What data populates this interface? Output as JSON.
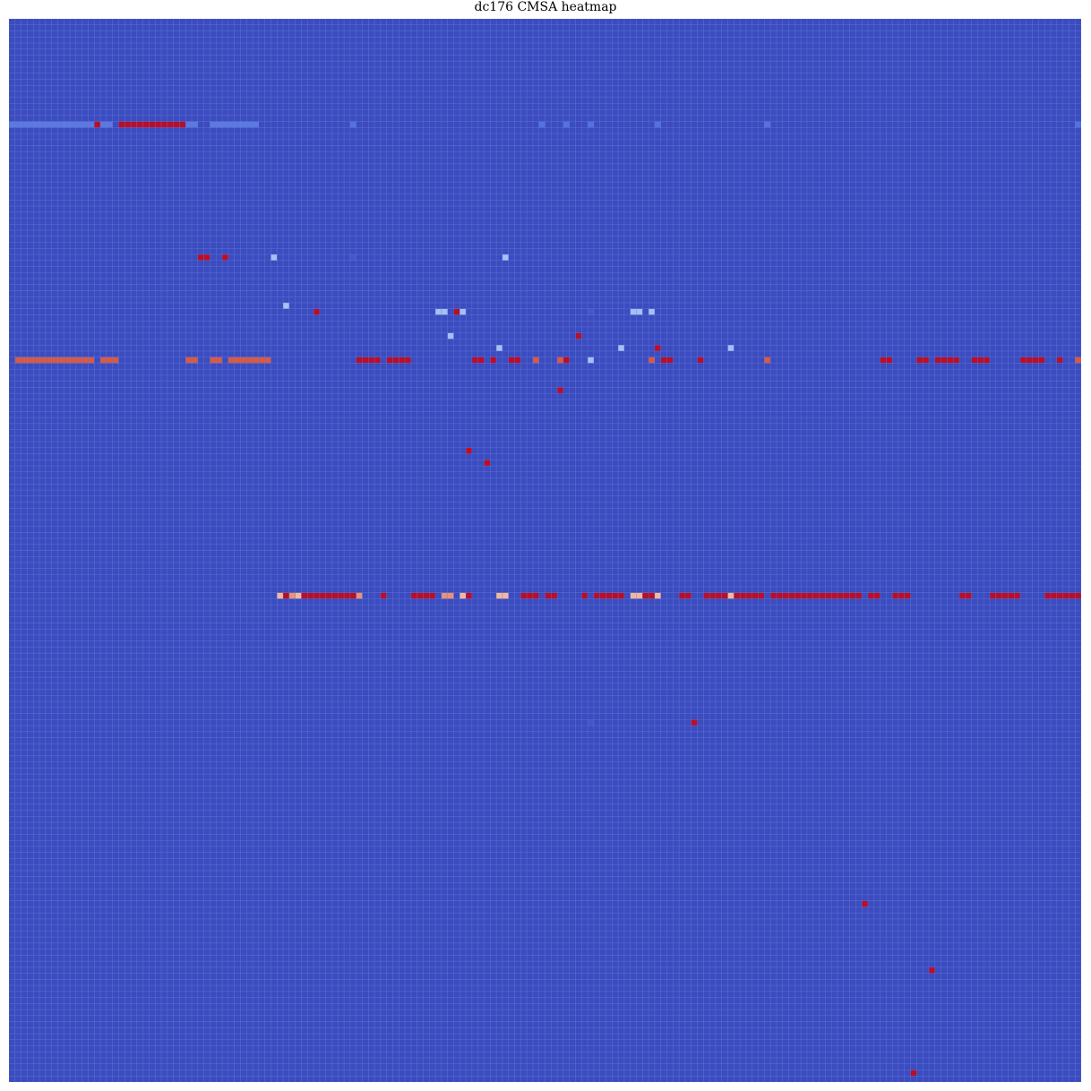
{
  "chart_data": {
    "type": "heatmap",
    "title": "dc176 CMSA heatmap",
    "xlabel": "",
    "ylabel": "",
    "grid": true,
    "legend": "none",
    "colormap": "coolwarm",
    "n_rows": 176,
    "n_cols": 176,
    "background_value": 0.0,
    "value_range": [
      0,
      1
    ],
    "colors": {
      "background": "#3b4cc0",
      "grid": "#6f7fd8"
    },
    "cells": [
      {
        "row": 17,
        "cols": [
          [
            0,
            13
          ],
          [
            15,
            16
          ],
          [
            29,
            30
          ],
          [
            33,
            40
          ]
        ],
        "value": 0.18
      },
      {
        "row": 17,
        "cols": [
          [
            56,
            56
          ],
          [
            87,
            87
          ],
          [
            91,
            91
          ],
          [
            95,
            95
          ],
          [
            106,
            106
          ],
          [
            124,
            124
          ],
          [
            175,
            175
          ]
        ],
        "value": 0.16
      },
      {
        "row": 17,
        "cols": [
          [
            14,
            14
          ],
          [
            18,
            28
          ]
        ],
        "value": 0.98
      },
      {
        "row": 39,
        "cols": [
          [
            31,
            32
          ],
          [
            35,
            35
          ]
        ],
        "value": 0.98
      },
      {
        "row": 39,
        "cols": [
          [
            43,
            43
          ],
          [
            81,
            81
          ]
        ],
        "value": 0.38
      },
      {
        "row": 39,
        "cols": [
          [
            56,
            56
          ]
        ],
        "value": 0.05
      },
      {
        "row": 47,
        "cols": [
          [
            45,
            45
          ]
        ],
        "value": 0.38
      },
      {
        "row": 48,
        "cols": [
          [
            50,
            50
          ],
          [
            73,
            73
          ]
        ],
        "value": 0.98
      },
      {
        "row": 48,
        "cols": [
          [
            70,
            71
          ],
          [
            74,
            74
          ],
          [
            102,
            103
          ],
          [
            105,
            105
          ]
        ],
        "value": 0.38
      },
      {
        "row": 48,
        "cols": [
          [
            95,
            95
          ]
        ],
        "value": 0.05
      },
      {
        "row": 52,
        "cols": [
          [
            72,
            72
          ]
        ],
        "value": 0.38
      },
      {
        "row": 52,
        "cols": [
          [
            93,
            93
          ]
        ],
        "value": 0.98
      },
      {
        "row": 54,
        "cols": [
          [
            80,
            80
          ],
          [
            100,
            100
          ],
          [
            118,
            118
          ]
        ],
        "value": 0.38
      },
      {
        "row": 54,
        "cols": [
          [
            106,
            106
          ]
        ],
        "value": 0.98
      },
      {
        "row": 56,
        "cols": [
          [
            1,
            13
          ],
          [
            15,
            17
          ],
          [
            29,
            30
          ],
          [
            33,
            34
          ],
          [
            36,
            42
          ],
          [
            86,
            86
          ],
          [
            90,
            90
          ],
          [
            105,
            105
          ],
          [
            124,
            124
          ],
          [
            175,
            175
          ]
        ],
        "value": 0.82
      },
      {
        "row": 56,
        "cols": [
          [
            57,
            60
          ],
          [
            62,
            65
          ],
          [
            76,
            77
          ],
          [
            79,
            79
          ],
          [
            82,
            83
          ],
          [
            91,
            91
          ],
          [
            107,
            108
          ],
          [
            113,
            113
          ],
          [
            143,
            144
          ],
          [
            149,
            150
          ],
          [
            152,
            155
          ],
          [
            158,
            160
          ],
          [
            166,
            169
          ],
          [
            172,
            172
          ]
        ],
        "value": 0.98
      },
      {
        "row": 56,
        "cols": [
          [
            95,
            95
          ]
        ],
        "value": 0.38
      },
      {
        "row": 61,
        "cols": [
          [
            90,
            90
          ]
        ],
        "value": 0.98
      },
      {
        "row": 71,
        "cols": [
          [
            75,
            75
          ]
        ],
        "value": 0.98
      },
      {
        "row": 73,
        "cols": [
          [
            78,
            78
          ]
        ],
        "value": 0.98
      },
      {
        "row": 95,
        "cols": [
          [
            44,
            44
          ],
          [
            47,
            47
          ],
          [
            74,
            74
          ],
          [
            80,
            81
          ],
          [
            99,
            99
          ],
          [
            102,
            104
          ],
          [
            106,
            106
          ],
          [
            118,
            118
          ]
        ],
        "value": 0.62
      },
      {
        "row": 95,
        "cols": [
          [
            45,
            45
          ],
          [
            48,
            56
          ],
          [
            62,
            56
          ],
          [
            67,
            67
          ],
          [
            61,
            61
          ],
          [
            66,
            69
          ],
          [
            75,
            75
          ],
          [
            84,
            86
          ],
          [
            88,
            89
          ],
          [
            94,
            94
          ],
          [
            96,
            100
          ],
          [
            104,
            105
          ],
          [
            110,
            111
          ],
          [
            114,
            117
          ],
          [
            119,
            123
          ],
          [
            125,
            139
          ],
          [
            141,
            142
          ],
          [
            145,
            147
          ],
          [
            156,
            157
          ],
          [
            161,
            165
          ],
          [
            170,
            174
          ],
          [
            175,
            175
          ]
        ],
        "value": 0.98
      },
      {
        "row": 95,
        "cols": [
          [
            46,
            46
          ],
          [
            71,
            72
          ],
          [
            57,
            57
          ]
        ],
        "value": 0.7
      },
      {
        "row": 116,
        "cols": [
          [
            112,
            112
          ]
        ],
        "value": 0.98
      },
      {
        "row": 116,
        "cols": [
          [
            95,
            95
          ]
        ],
        "value": 0.05
      },
      {
        "row": 146,
        "cols": [
          [
            140,
            140
          ]
        ],
        "value": 0.98
      },
      {
        "row": 157,
        "cols": [
          [
            151,
            151
          ]
        ],
        "value": 0.98
      },
      {
        "row": 174,
        "cols": [
          [
            148,
            148
          ]
        ],
        "value": 0.98
      }
    ]
  }
}
